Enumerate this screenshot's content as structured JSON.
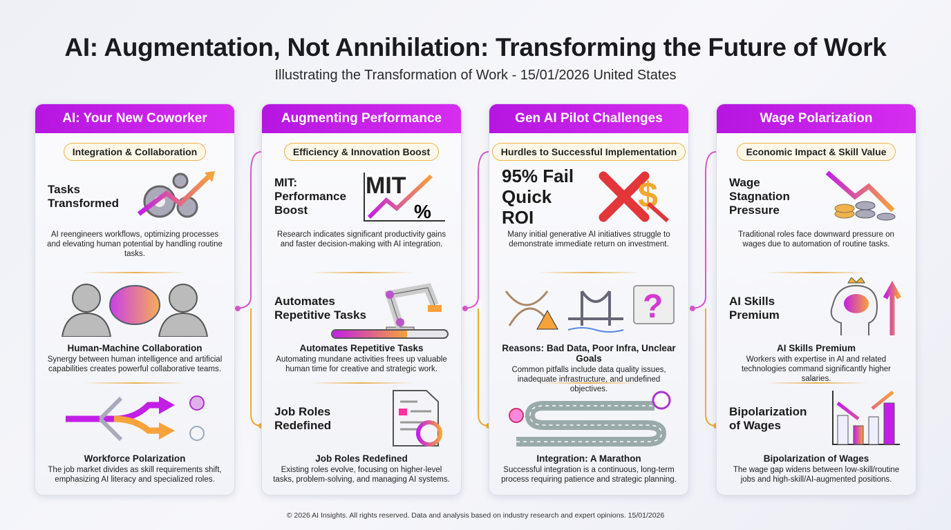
{
  "title": "AI: Augmentation, Not Annihilation: Transforming the Future of Work",
  "subtitle": "Illustrating the Transformation of Work - 15/01/2026 United States",
  "footer": "© 2026 AI Insights. All rights reserved. Data and analysis based on industry research and expert opinions. 15/01/2026",
  "colors": {
    "header": "#c21fe6",
    "pill_border": "#f0b24a",
    "connector_pink": "#d957c6",
    "connector_orange": "#f0a830"
  },
  "cards": [
    {
      "header": "AI: Your New Coworker",
      "pill": "Integration & Collaboration",
      "sections": [
        {
          "hero": "Tasks Transformed",
          "icon": "gears-arrow-icon",
          "title": "",
          "desc": "AI reengineers workflows, optimizing processes and elevating human potential by handling routine tasks."
        },
        {
          "hero": "",
          "icon": "human-brain-human-icon",
          "title": "Human-Machine Collaboration",
          "desc": "Synergy between human intelligence and artificial capabilities creates powerful collaborative teams."
        },
        {
          "hero": "",
          "icon": "diverging-arrows-icon",
          "title": "Workforce Polarization",
          "desc": "The job market divides as skill requirements shift, emphasizing AI literacy and specialized roles."
        }
      ]
    },
    {
      "header": "Augmenting Performance",
      "pill": "Efficiency & Innovation Boost",
      "sections": [
        {
          "hero": "MIT: Performance Boost",
          "icon": "mit-chart-icon",
          "icon_text": "MIT",
          "icon_text2": "%",
          "title": "",
          "desc": "Research indicates significant productivity gains and faster decision-making with AI integration."
        },
        {
          "hero": "Automates Repetitive Tasks",
          "icon": "robot-arm-icon",
          "progress": 0.65,
          "title": "Automates Repetitive Tasks",
          "desc": "Automating mundane activities frees up valuable human time for creative and strategic work."
        },
        {
          "hero": "Job Roles Redefined",
          "icon": "document-refresh-icon",
          "title": "Job Roles Redefined",
          "desc": "Existing roles evolve, focusing on higher-level tasks, problem-solving, and managing AI systems."
        }
      ]
    },
    {
      "header": "Gen AI Pilot Challenges",
      "pill": "Hurdles to Successful Implementation",
      "sections": [
        {
          "hero": "95% Fail Quick ROI",
          "big": true,
          "icon": "x-dollar-icon",
          "title": "",
          "desc": "Many initial generative AI initiatives struggle to demonstrate immediate return on investment."
        },
        {
          "hero": "",
          "icon": "pitfalls-icon",
          "title": "Reasons: Bad Data, Poor Infra, Unclear Goals",
          "desc": "Common pitfalls include data quality issues, inadequate infrastructure, and undefined objectives."
        },
        {
          "hero": "",
          "icon": "winding-road-icon",
          "title": "Integration: A Marathon",
          "desc": "Successful integration is a continuous, long-term process requiring patience and strategic planning."
        }
      ]
    },
    {
      "header": "Wage Polarization",
      "pill": "Economic Impact & Skill Value",
      "sections": [
        {
          "hero": "Wage Stagnation Pressure",
          "icon": "coins-down-icon",
          "title": "",
          "desc": "Traditional roles face downward pressure on wages due to automation of routine tasks."
        },
        {
          "hero": "AI Skills Premium",
          "icon": "head-crown-icon",
          "title": "AI Skills Premium",
          "desc": "Workers with expertise in AI and related technologies command significantly higher salaries."
        },
        {
          "hero": "Bipolarization of Wages",
          "icon": "bar-chart-arrows-icon",
          "title": "Bipolarization of Wages",
          "desc": "The wage gap widens between low-skill/routine jobs and high-skill/AI-augmented positions."
        }
      ]
    }
  ]
}
